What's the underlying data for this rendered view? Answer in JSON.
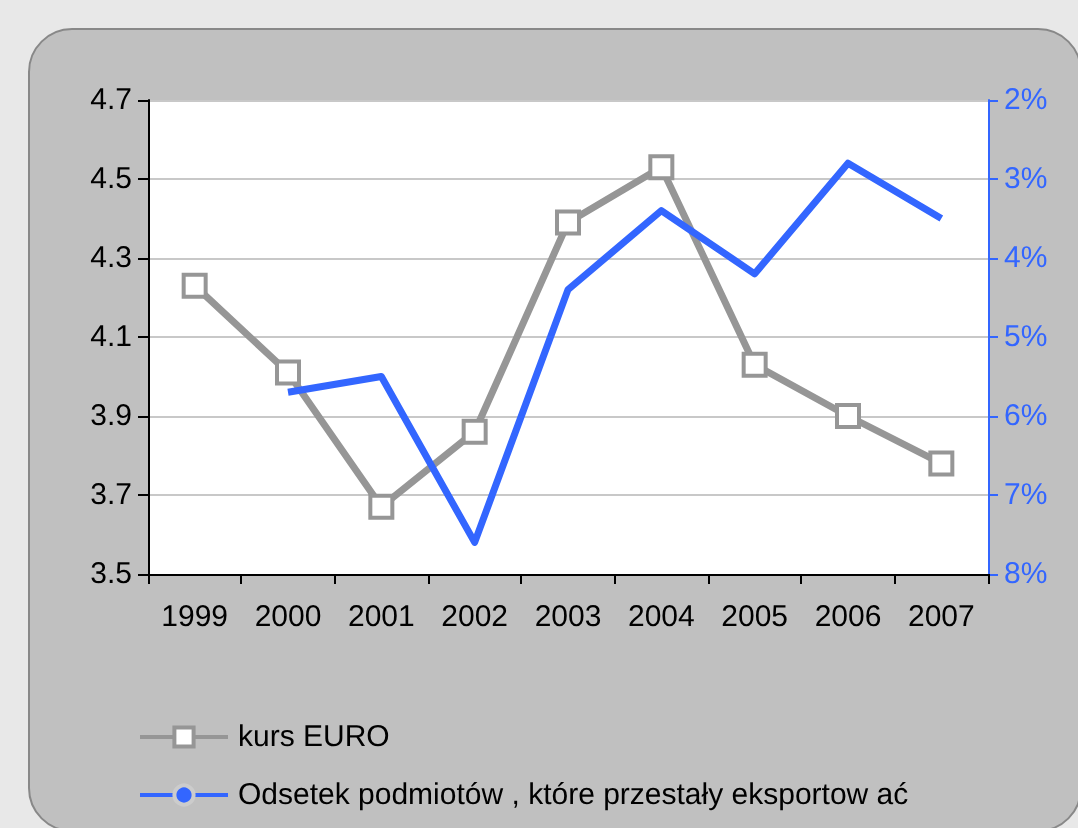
{
  "chart_data": {
    "type": "line",
    "categories": [
      "1999",
      "2000",
      "2001",
      "2002",
      "2003",
      "2004",
      "2005",
      "2006",
      "2007"
    ],
    "series": [
      {
        "name": "kurs EURO",
        "color": "#969696",
        "marker": "square",
        "values": [
          4.23,
          4.01,
          3.67,
          3.86,
          4.39,
          4.53,
          4.03,
          3.9,
          3.78
        ]
      },
      {
        "name": "Odsetek podmiotów , które przestały eksportow ać",
        "color": "#3366ff",
        "marker": "none",
        "axis": "y2",
        "values": [
          null,
          5.7,
          5.5,
          7.6,
          4.4,
          3.4,
          4.2,
          2.8,
          3.5
        ]
      }
    ],
    "ylim": [
      3.5,
      4.7
    ],
    "yticks": [
      3.5,
      3.7,
      3.9,
      4.1,
      4.3,
      4.5,
      4.7
    ],
    "y2lim": [
      8,
      2
    ],
    "y2ticks": [
      {
        "value": 2,
        "label": "2%"
      },
      {
        "value": 3,
        "label": "3%"
      },
      {
        "value": 4,
        "label": "4%"
      },
      {
        "value": 5,
        "label": "5%"
      },
      {
        "value": 6,
        "label": "6%"
      },
      {
        "value": 7,
        "label": "7%"
      },
      {
        "value": 8,
        "label": "8%"
      }
    ],
    "grid": "y",
    "legend": "bottom"
  }
}
